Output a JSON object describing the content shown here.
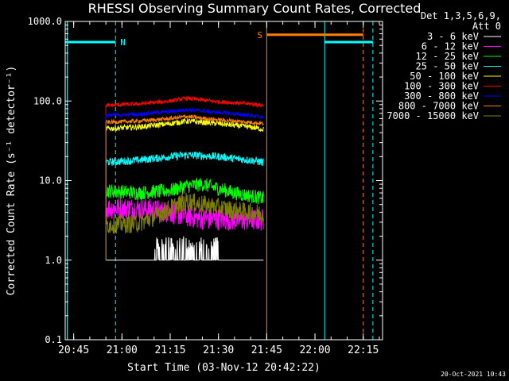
{
  "chart_data": {
    "type": "line",
    "title": "RHESSI Observing Summary Count Rates, Corrected",
    "xlabel": "Start Time (03-Nov-12 20:42:22)",
    "ylabel": "Corrected Count Rate (s⁻¹ detector⁻¹)",
    "yscale": "log",
    "ylim": [
      0.1,
      1000
    ],
    "xlim": [
      "20:42:22",
      "22:21:00"
    ],
    "xticks": [
      "20:45",
      "21:00",
      "21:15",
      "21:30",
      "21:45",
      "22:00",
      "22:15"
    ],
    "yticks": [
      "0.1",
      "1.0",
      "10.0",
      "100.0",
      "1000.0"
    ],
    "legend_header": [
      "Det 1,3,5,6,9,",
      "Att 0"
    ],
    "legend_position": "right",
    "data_interval": [
      "20:55:00",
      "21:44:00"
    ],
    "series": [
      {
        "name": "3 - 6 keV",
        "color": "#ffffff",
        "x": [
          "21:05",
          "21:10",
          "21:13",
          "21:15",
          "21:18",
          "21:21",
          "21:24",
          "21:27",
          "21:30",
          "21:33",
          "21:40"
        ],
        "y": [
          1.0,
          1.0,
          1.3,
          2.0,
          1.6,
          2.0,
          1.4,
          1.2,
          1.1,
          1.0,
          1.0
        ]
      },
      {
        "name": "6 - 12 keV",
        "color": "#ff00ff",
        "x": [
          "20:55",
          "21:05",
          "21:15",
          "21:20",
          "21:25",
          "21:35",
          "21:44"
        ],
        "y": [
          4.5,
          4.5,
          4.0,
          3.6,
          3.3,
          3.2,
          3.2
        ]
      },
      {
        "name": "12 - 25 keV",
        "color": "#00ff00",
        "x": [
          "20:55",
          "21:05",
          "21:15",
          "21:20",
          "21:25",
          "21:35",
          "21:44"
        ],
        "y": [
          7.5,
          7.0,
          7.5,
          8.5,
          9.0,
          7.0,
          6.0
        ]
      },
      {
        "name": "25 - 50 keV",
        "color": "#00ffff",
        "x": [
          "20:55",
          "21:05",
          "21:15",
          "21:20",
          "21:30",
          "21:40",
          "21:44"
        ],
        "y": [
          17,
          18,
          20,
          21,
          20,
          18,
          17
        ]
      },
      {
        "name": "50 - 100 keV",
        "color": "#ffff00",
        "x": [
          "20:55",
          "21:05",
          "21:15",
          "21:20",
          "21:30",
          "21:40",
          "21:44"
        ],
        "y": [
          45,
          47,
          52,
          56,
          52,
          47,
          44
        ]
      },
      {
        "name": "100 - 300 keV",
        "color": "#ff0000",
        "x": [
          "20:55",
          "21:05",
          "21:15",
          "21:20",
          "21:30",
          "21:40",
          "21:44"
        ],
        "y": [
          88,
          92,
          100,
          108,
          98,
          92,
          88
        ]
      },
      {
        "name": "300 - 800 keV",
        "color": "#0000ff",
        "x": [
          "20:55",
          "21:05",
          "21:15",
          "21:20",
          "21:30",
          "21:40",
          "21:44"
        ],
        "y": [
          66,
          68,
          74,
          78,
          72,
          66,
          62
        ]
      },
      {
        "name": "800 - 7000 keV",
        "color": "#ff7f00",
        "x": [
          "20:55",
          "21:05",
          "21:15",
          "21:20",
          "21:30",
          "21:40",
          "21:44"
        ],
        "y": [
          54,
          56,
          60,
          64,
          58,
          54,
          52
        ]
      },
      {
        "name": "7000 - 15000 keV",
        "color": "#808000",
        "x": [
          "20:55",
          "21:05",
          "21:10",
          "21:15",
          "21:20",
          "21:25",
          "21:35",
          "21:44"
        ],
        "y": [
          2.8,
          2.9,
          3.5,
          4.5,
          5.5,
          5.0,
          4.2,
          3.8
        ]
      }
    ],
    "flags": [
      {
        "label": "N",
        "color": "#00ffff",
        "x": [
          "20:40",
          "20:58"
        ],
        "y": 550
      },
      {
        "label": "",
        "color": "#00ffff",
        "x": [
          "22:03",
          "22:18"
        ],
        "y": 550
      },
      {
        "label": "S",
        "color": "#ff7f00",
        "x": [
          "21:45",
          "22:15"
        ],
        "y": 680
      }
    ],
    "vlines": [
      {
        "x": "20:43",
        "color": "#00ffff",
        "style": "solid"
      },
      {
        "x": "20:58",
        "color": "#00ffff",
        "style": "dashed"
      },
      {
        "x": "21:45",
        "color": "#ff7f00",
        "style": "solid"
      },
      {
        "x": "22:03",
        "color": "#00ffff",
        "style": "solid"
      },
      {
        "x": "22:15",
        "color": "#ff7f00",
        "style": "dashed"
      },
      {
        "x": "22:18",
        "color": "#00ffff",
        "style": "dashed"
      }
    ]
  },
  "footer": {
    "date": "20-Oct-2021 10:43"
  }
}
